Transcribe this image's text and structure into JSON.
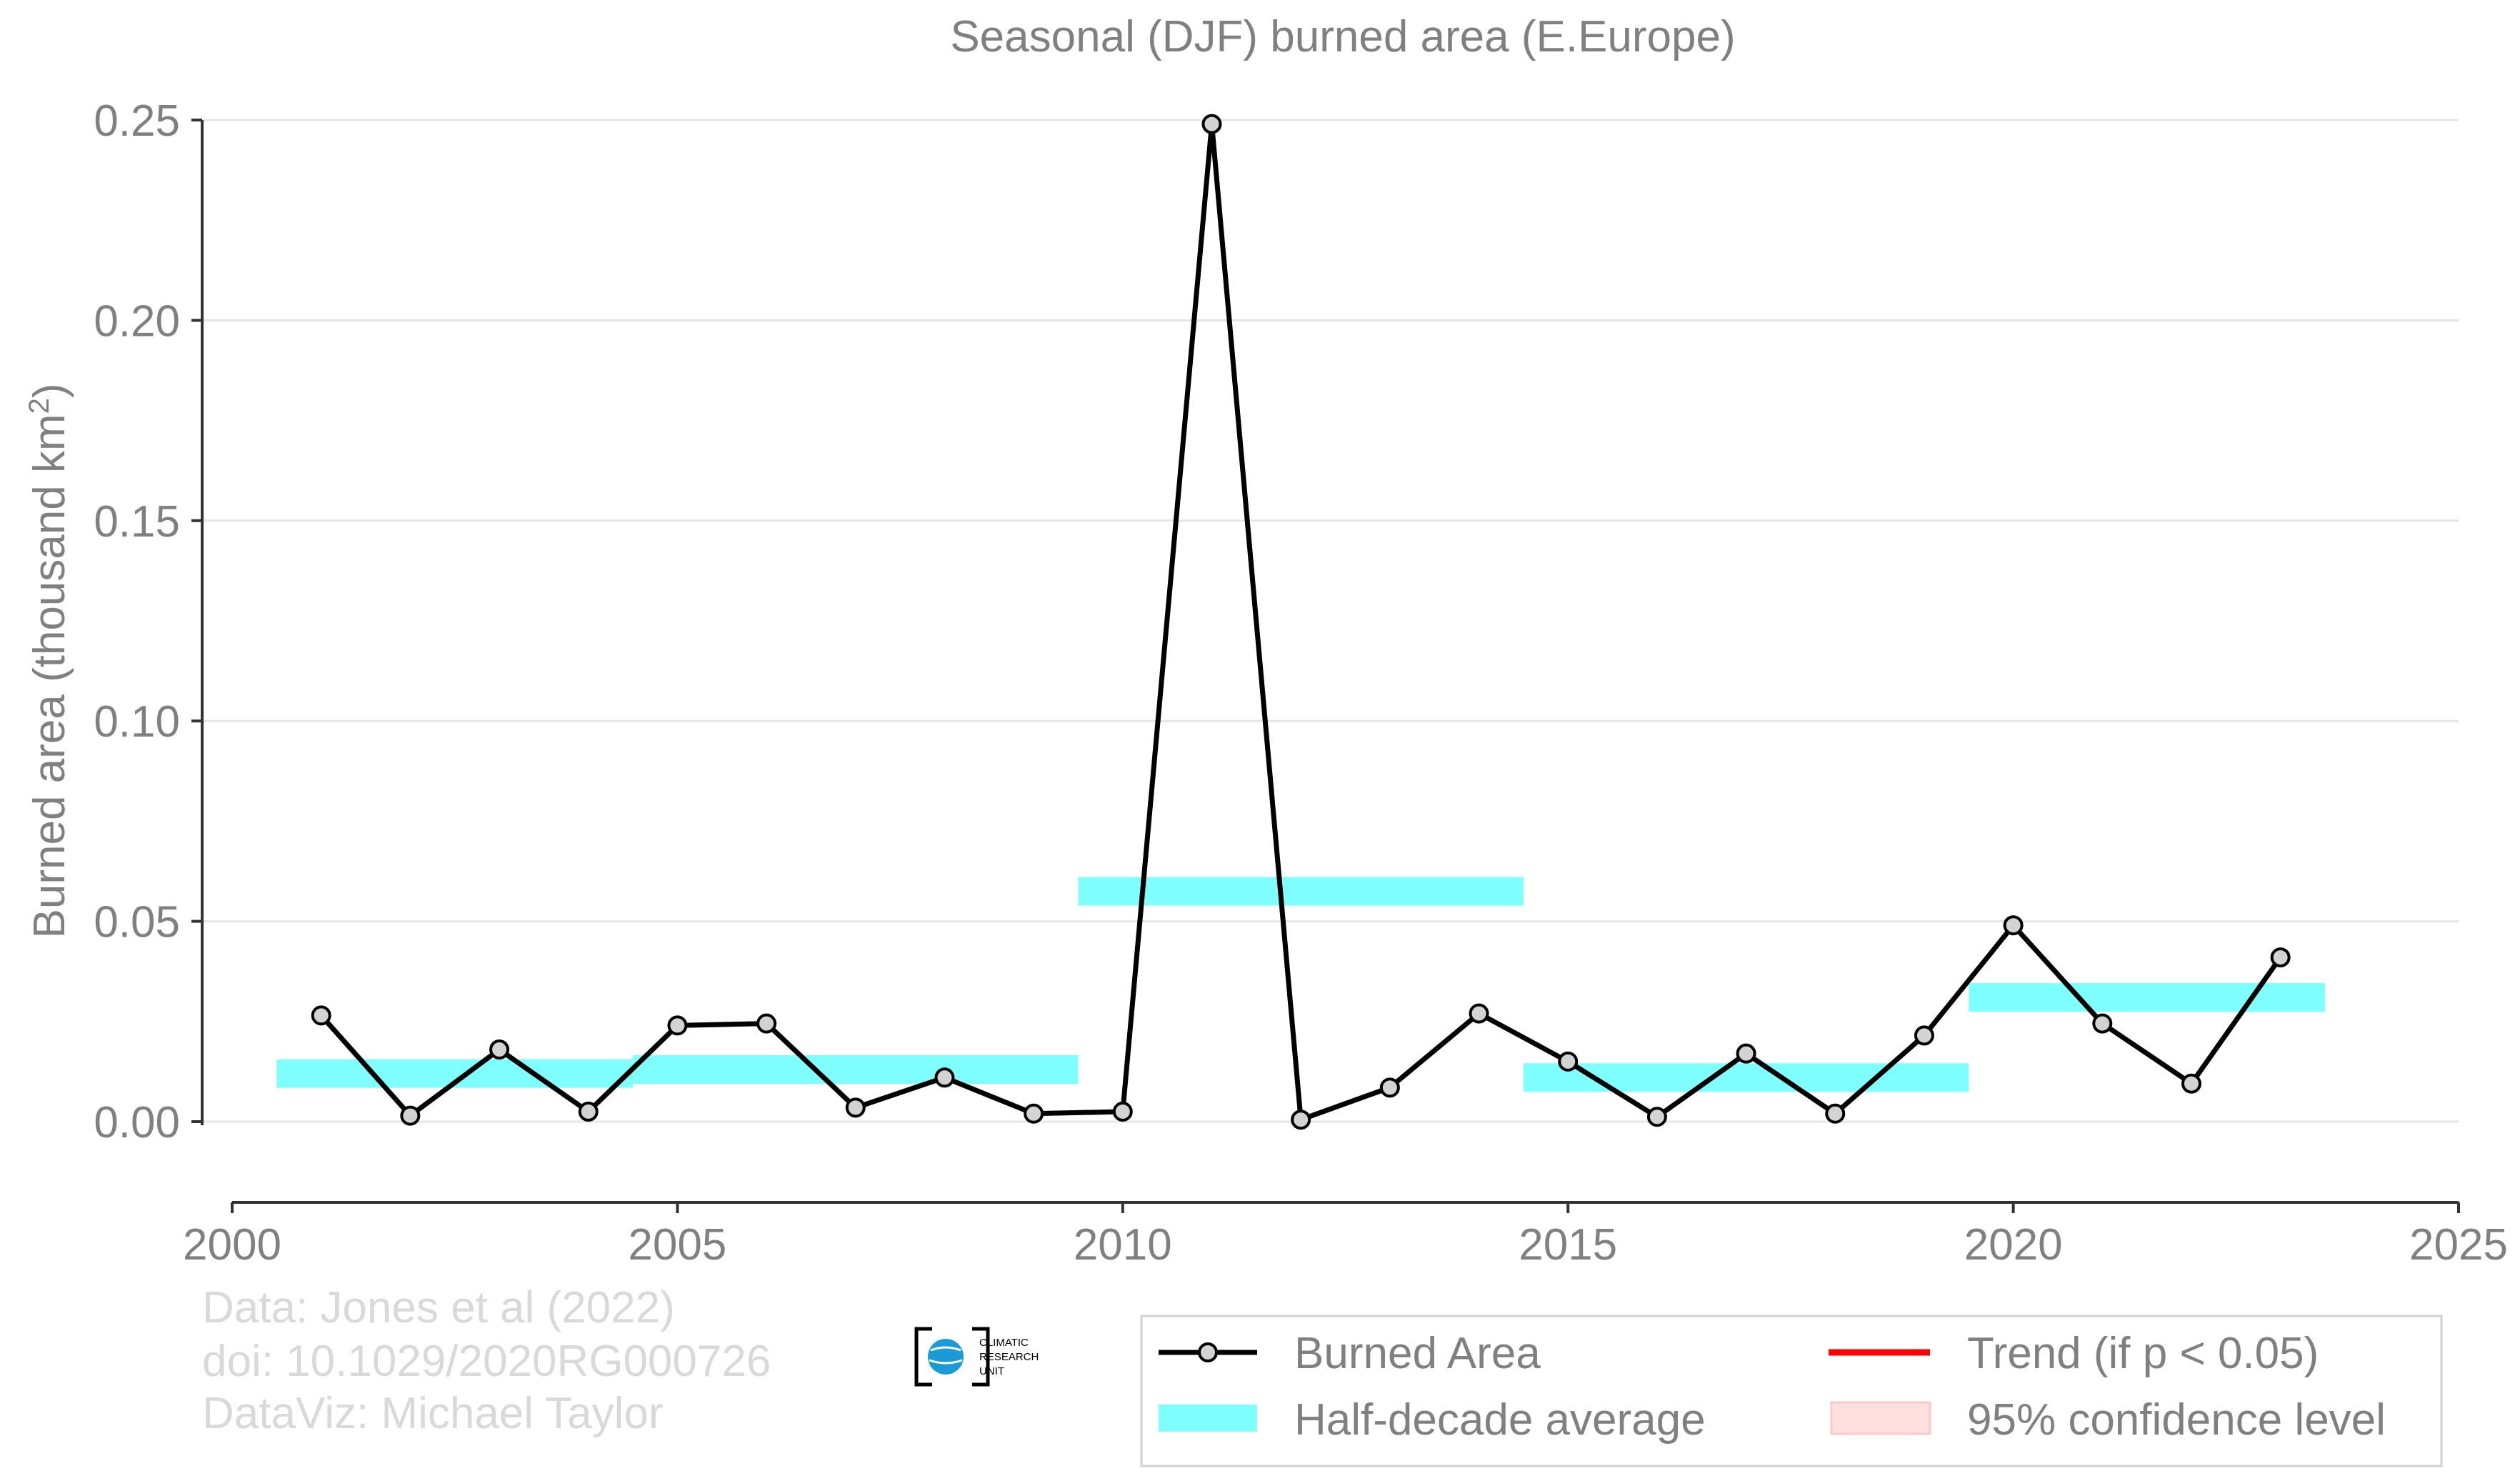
{
  "chart_data": {
    "type": "line",
    "title": "Seasonal (DJF) burned area (E.Europe)",
    "ylabel": "Burned area (thousand km",
    "ylabel_sup": "2",
    "ylabel_end": ")",
    "xlabel": "",
    "xlim": [
      2000,
      2025
    ],
    "ylim": [
      -0.02,
      0.25
    ],
    "x_ticks": [
      2000,
      2005,
      2010,
      2015,
      2020,
      2025
    ],
    "y_ticks": [
      0.0,
      0.05,
      0.1,
      0.15,
      0.2,
      0.25
    ],
    "y_tick_labels": [
      "0.00",
      "0.05",
      "0.10",
      "0.15",
      "0.20",
      "0.25"
    ],
    "grid": "horizontal",
    "legend_position": "bottom-right",
    "series": [
      {
        "name": "Burned Area",
        "color": "#000000",
        "marker_fill": "#d3d3d3",
        "x": [
          2001,
          2002,
          2003,
          2004,
          2005,
          2006,
          2007,
          2008,
          2009,
          2010,
          2011,
          2012,
          2013,
          2014,
          2015,
          2016,
          2017,
          2018,
          2019,
          2020,
          2021,
          2022,
          2023
        ],
        "y": [
          0.0265,
          0.0015,
          0.018,
          0.0025,
          0.024,
          0.0245,
          0.0035,
          0.011,
          0.002,
          0.0025,
          0.249,
          0.0005,
          0.0085,
          0.027,
          0.015,
          0.0012,
          0.017,
          0.002,
          0.0215,
          0.049,
          0.0245,
          0.0095,
          0.041
        ]
      }
    ],
    "half_decade_average": {
      "name": "Half-decade average",
      "color": "#7fffff",
      "segments": [
        {
          "x_start": 2000.5,
          "x_end": 2004.5,
          "y": 0.012
        },
        {
          "x_start": 2004.5,
          "x_end": 2009.5,
          "y": 0.013
        },
        {
          "x_start": 2009.5,
          "x_end": 2014.5,
          "y": 0.0575
        },
        {
          "x_start": 2014.5,
          "x_end": 2019.5,
          "y": 0.011
        },
        {
          "x_start": 2019.5,
          "x_end": 2023.5,
          "y": 0.031
        }
      ]
    },
    "legend": [
      {
        "label": "Burned Area",
        "kind": "line-marker",
        "color": "#000000"
      },
      {
        "label": "Trend (if p < 0.05)",
        "kind": "line",
        "color": "#ff0000"
      },
      {
        "label": "Half-decade average",
        "kind": "band",
        "color": "#7fffff"
      },
      {
        "label": "95% confidence level",
        "kind": "band",
        "color": "#ffe0e0"
      }
    ]
  },
  "credits": {
    "line1": "Data: Jones et al (2022)",
    "line2": "doi: 10.1029/2020RG000726",
    "line3": "DataViz: Michael Taylor"
  },
  "logo": {
    "text_lines": [
      "CLIMATIC",
      "RESEARCH",
      "UNIT"
    ],
    "color": "#1a9ad6"
  }
}
